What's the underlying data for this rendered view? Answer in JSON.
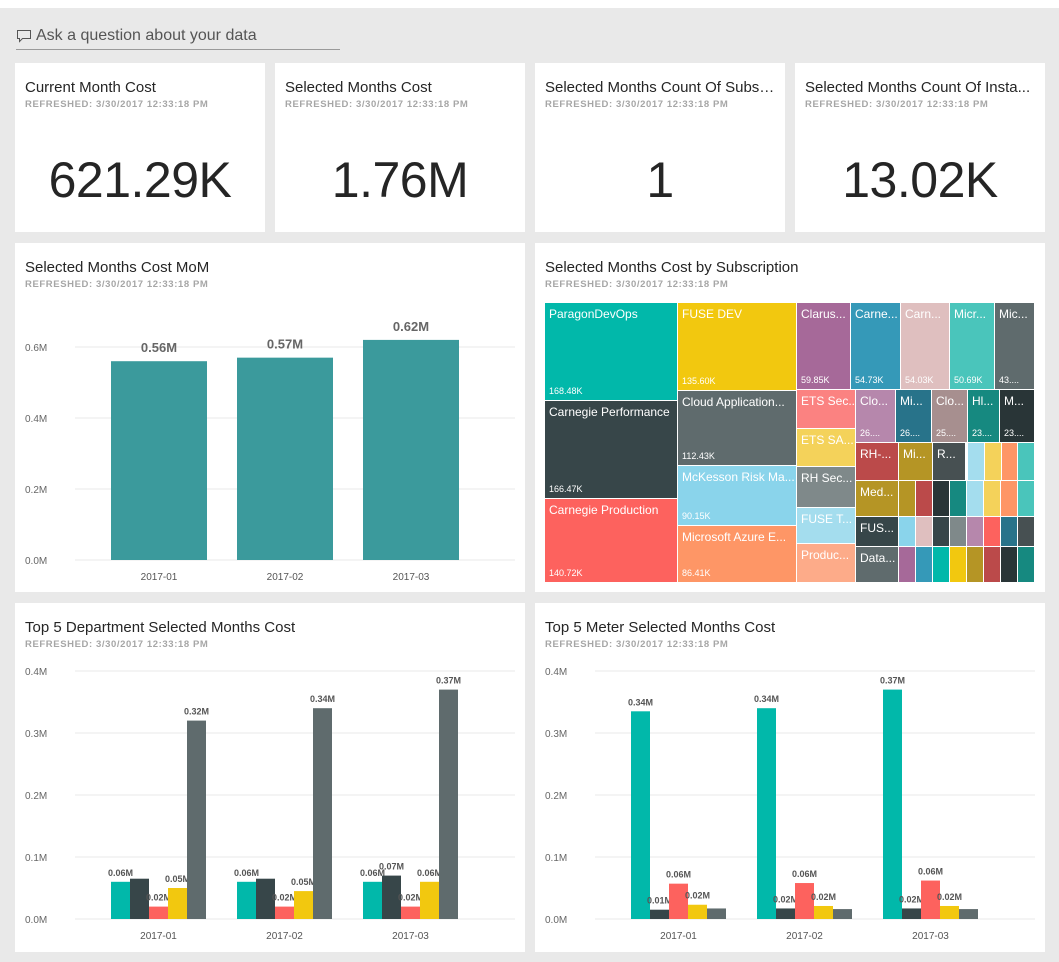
{
  "qa": {
    "placeholder": "Ask a question about your data"
  },
  "kpis": [
    {
      "title": "Current Month Cost",
      "refreshed": "REFRESHED: 3/30/2017 12:33:18 PM",
      "value": "621.29K"
    },
    {
      "title": "Selected Months Cost",
      "refreshed": "REFRESHED: 3/30/2017 12:33:18 PM",
      "value": "1.76M"
    },
    {
      "title": "Selected Months Count Of Subsc...",
      "refreshed": "REFRESHED: 3/30/2017 12:33:18 PM",
      "value": "1"
    },
    {
      "title": "Selected Months Count Of Insta...",
      "refreshed": "REFRESHED: 3/30/2017 12:33:18 PM",
      "value": "13.02K"
    }
  ],
  "mom": {
    "title": "Selected Months Cost MoM",
    "refreshed": "REFRESHED: 3/30/2017 12:33:18 PM"
  },
  "treemap": {
    "title": "Selected Months Cost by Subscription",
    "refreshed": "REFRESHED: 3/30/2017 12:33:18 PM",
    "cells": [
      {
        "name": "ParagonDevOps",
        "value": "168.48K",
        "color": "#01b8aa"
      },
      {
        "name": "Carnegie Performance",
        "value": "166.47K",
        "color": "#374649"
      },
      {
        "name": "Carnegie Production",
        "value": "140.72K",
        "color": "#fd625e"
      },
      {
        "name": "FUSE DEV",
        "value": "135.60K",
        "color": "#f2c80f"
      },
      {
        "name": "Cloud Application...",
        "value": "112.43K",
        "color": "#5f6b6d"
      },
      {
        "name": "McKesson Risk Ma...",
        "value": "90.15K",
        "color": "#8ad4eb"
      },
      {
        "name": "Microsoft Azure E...",
        "value": "86.41K",
        "color": "#fe9666"
      },
      {
        "name": "Clarus...",
        "value": "59.85K",
        "color": "#a66999"
      },
      {
        "name": "Carne...",
        "value": "54.73K",
        "color": "#3599b8"
      },
      {
        "name": "Carn...",
        "value": "54.03K",
        "color": "#dfbfbf"
      },
      {
        "name": "Micr...",
        "value": "50.69K",
        "color": "#4ac5bb"
      },
      {
        "name": "Mic...",
        "value": "43....",
        "color": "#5f6b6d"
      },
      {
        "name": "ETS Sec...",
        "value": "",
        "color": "#fb8281"
      },
      {
        "name": "ETS SA...",
        "value": "",
        "color": "#f4d25a"
      },
      {
        "name": "RH Sec...",
        "value": "",
        "color": "#7f898a"
      },
      {
        "name": "FUSE T...",
        "value": "",
        "color": "#a4ddee"
      },
      {
        "name": "Produc...",
        "value": "",
        "color": "#fdab89"
      },
      {
        "name": "Clo...",
        "value": "26....",
        "color": "#b687ac"
      },
      {
        "name": "Mi...",
        "value": "26....",
        "color": "#28738a"
      },
      {
        "name": "Clo...",
        "value": "25....",
        "color": "#a78f8f"
      },
      {
        "name": "Hl...",
        "value": "23....",
        "color": "#168980"
      },
      {
        "name": "M...",
        "value": "23....",
        "color": "#293537"
      },
      {
        "name": "RH-...",
        "value": "",
        "color": "#bb4a4a"
      },
      {
        "name": "Mi...",
        "value": "",
        "color": "#b59525"
      },
      {
        "name": "R...",
        "value": "",
        "color": "#475052"
      },
      {
        "name": "Med...",
        "value": "",
        "color": "#b59525"
      },
      {
        "name": "FUS...",
        "value": "",
        "color": "#374649"
      },
      {
        "name": "Data...",
        "value": "",
        "color": "#5f6b6d"
      }
    ]
  },
  "dept": {
    "title": "Top 5 Department Selected Months Cost",
    "refreshed": "REFRESHED: 3/30/2017 12:33:18 PM"
  },
  "meter": {
    "title": "Top 5 Meter Selected Months Cost",
    "refreshed": "REFRESHED: 3/30/2017 12:33:18 PM"
  },
  "colors": {
    "teal": "#01b8aa",
    "dark": "#374649",
    "red": "#fd625e",
    "yellow": "#f2c80f",
    "gray": "#5f6b6d",
    "mom": "#3b9a9c"
  },
  "chart_data": [
    {
      "type": "bar",
      "title": "Selected Months Cost MoM",
      "categories": [
        "2017-01",
        "2017-02",
        "2017-03"
      ],
      "values": [
        0.56,
        0.57,
        0.62
      ],
      "labels": [
        "0.56M",
        "0.57M",
        "0.62M"
      ],
      "yticks": [
        "0.0M",
        "0.2M",
        "0.4M",
        "0.6M"
      ],
      "ylim": [
        0,
        0.6
      ]
    },
    {
      "type": "bar",
      "title": "Top 5 Department Selected Months Cost",
      "categories": [
        "2017-01",
        "2017-02",
        "2017-03"
      ],
      "series": [
        {
          "values": [
            0.06,
            0.06,
            0.06
          ],
          "labels": [
            "0.06M",
            "0.06M",
            "0.06M"
          ]
        },
        {
          "values": [
            0.065,
            0.065,
            0.07
          ],
          "labels": [
            "",
            "",
            "0.07M"
          ]
        },
        {
          "values": [
            0.02,
            0.02,
            0.02
          ],
          "labels": [
            "0.02M",
            "0.02M",
            "0.02M"
          ]
        },
        {
          "values": [
            0.05,
            0.045,
            0.06
          ],
          "labels": [
            "0.05M",
            "0.05M",
            "0.06M"
          ]
        },
        {
          "values": [
            0.32,
            0.34,
            0.37
          ],
          "labels": [
            "0.32M",
            "0.34M",
            "0.37M"
          ]
        }
      ],
      "yticks": [
        "0.0M",
        "0.1M",
        "0.2M",
        "0.3M",
        "0.4M"
      ],
      "ylim": [
        0,
        0.4
      ]
    },
    {
      "type": "bar",
      "title": "Top 5 Meter Selected Months Cost",
      "categories": [
        "2017-01",
        "2017-02",
        "2017-03"
      ],
      "series": [
        {
          "values": [
            0.335,
            0.34,
            0.37
          ],
          "labels": [
            "0.34M",
            "0.34M",
            "0.37M"
          ]
        },
        {
          "values": [
            0.015,
            0.017,
            0.017
          ],
          "labels": [
            "0.01M",
            "0.02M",
            "0.02M"
          ]
        },
        {
          "values": [
            0.057,
            0.058,
            0.062
          ],
          "labels": [
            "0.06M",
            "0.06M",
            "0.06M"
          ]
        },
        {
          "values": [
            0.023,
            0.021,
            0.021
          ],
          "labels": [
            "0.02M",
            "0.02M",
            "0.02M"
          ]
        },
        {
          "values": [
            0.017,
            0.016,
            0.016
          ],
          "labels": [
            "",
            "",
            ""
          ]
        }
      ],
      "yticks": [
        "0.0M",
        "0.1M",
        "0.2M",
        "0.3M",
        "0.4M"
      ],
      "ylim": [
        0,
        0.4
      ]
    }
  ]
}
